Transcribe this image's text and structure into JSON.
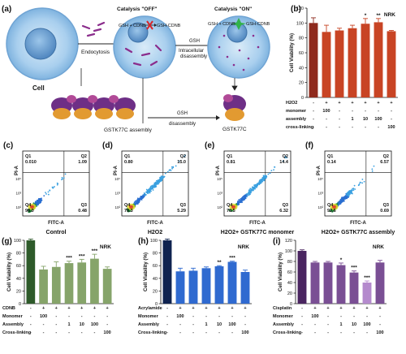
{
  "panel_labels": {
    "a": "(a)",
    "b": "(b)",
    "c": "(c)",
    "d": "(d)",
    "e": "(e)",
    "f": "(f)",
    "g": "(g)",
    "h": "(h)",
    "i": "(i)"
  },
  "schematic": {
    "catalysis_off": "Catalysis \"OFF\"",
    "catalysis_on": "Catalysis \"ON\"",
    "gsh_cdnb_1": "GSH + CDNB",
    "gsh_cdnb_product_1": "GSH-CDNB",
    "gsh_cdnb_2": "GSH + CDNB",
    "gsh_cdnb_product_2": "GSH-CDNB",
    "endocytosis": "Endocytosis",
    "gsh_top": "GSH",
    "intracellular": "Intracellular",
    "disassembly_top": "disassembly",
    "gsh_bottom": "GSH",
    "disassembly_bottom": "disassembly",
    "cell": "Cell",
    "assembly_label": "GSTK77C assembly",
    "monomer_label": "GSTK77C"
  },
  "flow": {
    "ylabel": "PI-A",
    "xlabel": "FITC-A",
    "panels": [
      {
        "q1": "0.010",
        "q2": "1.09",
        "q3": "0.48",
        "q4": "98.0",
        "caption": "Control"
      },
      {
        "q1": "0.80",
        "q2": "15.0",
        "q3": "5.29",
        "q4": "78.3",
        "caption": "H2O2"
      },
      {
        "q1": "0.81",
        "q2": "14.4",
        "q3": "6.32",
        "q4": "78.5",
        "caption": "H2O2+ GSTK77C monomer"
      },
      {
        "q1": "0.14",
        "q2": "6.57",
        "q3": "0.69",
        "q4": "92.6",
        "caption": "H2O2+ GSTK77C assembly"
      }
    ],
    "quadrants": {
      "q1": "Q1",
      "q2": "Q2",
      "q3": "Q3",
      "q4": "Q4"
    }
  },
  "chart_data": [
    {
      "panel": "b",
      "type": "bar",
      "title": "NRK",
      "ylabel": "Cell Viability (%)",
      "ylim": [
        0,
        120
      ],
      "yticks": [
        0,
        20,
        40,
        60,
        80,
        100,
        120
      ],
      "values": [
        100,
        88,
        90,
        93,
        99,
        101,
        89
      ],
      "errors": [
        7,
        9,
        3,
        4,
        7,
        5,
        1
      ],
      "colors": [
        "#8e2a1d",
        "#c84424",
        "#c84424",
        "#c84424",
        "#c84424",
        "#c84424",
        "#c84424"
      ],
      "stars": [
        "",
        "",
        "",
        "",
        "*",
        "**",
        ""
      ],
      "rows": [
        {
          "name": "H2O2",
          "cells": [
            "-",
            "+",
            "+",
            "+",
            "+",
            "+",
            "+"
          ]
        },
        {
          "name": "monomer",
          "cells": [
            "-",
            "100",
            "-",
            "-",
            "-",
            "-",
            "-"
          ]
        },
        {
          "name": "assembly",
          "cells": [
            "-",
            "-",
            "-",
            "1",
            "10",
            "100",
            "-"
          ]
        },
        {
          "name": "cross-linking",
          "cells": [
            "-",
            "-",
            "-",
            "-",
            "-",
            "-",
            "100"
          ]
        }
      ]
    },
    {
      "panel": "g",
      "type": "bar",
      "title": "NRK",
      "ylabel": "Cell Viability (%)",
      "ylim": [
        0,
        100
      ],
      "yticks": [
        0,
        20,
        40,
        60,
        80,
        100
      ],
      "values": [
        100,
        54,
        58,
        64,
        65,
        71,
        55
      ],
      "errors": [
        2,
        5,
        8,
        3,
        5,
        7,
        3
      ],
      "colors": [
        "#2e5a2a",
        "#86a46a",
        "#86a46a",
        "#86a46a",
        "#86a46a",
        "#86a46a",
        "#86a46a"
      ],
      "stars": [
        "",
        "",
        "",
        "***",
        "***",
        "***",
        ""
      ],
      "rows": [
        {
          "name": "CDNB",
          "cells": [
            "-",
            "+",
            "+",
            "+",
            "+",
            "+",
            "+"
          ]
        },
        {
          "name": "Monomer",
          "cells": [
            "-",
            "100",
            "-",
            "-",
            "-",
            "-",
            "-"
          ]
        },
        {
          "name": "Assembly",
          "cells": [
            "-",
            "-",
            "-",
            "1",
            "10",
            "100",
            "-"
          ]
        },
        {
          "name": "Cross-linking",
          "cells": [
            "-",
            "-",
            "-",
            "-",
            "-",
            "-",
            "100"
          ]
        }
      ]
    },
    {
      "panel": "h",
      "type": "bar",
      "title": "NRK",
      "ylabel": "Cell Viability (%)",
      "ylim": [
        0,
        100
      ],
      "yticks": [
        0,
        20,
        40,
        60,
        80,
        100
      ],
      "values": [
        100,
        51,
        52,
        56,
        59,
        66,
        50
      ],
      "errors": [
        2,
        5,
        4,
        2,
        1,
        1,
        3
      ],
      "colors": [
        "#0f2350",
        "#2f6ad0",
        "#2f6ad0",
        "#2f6ad0",
        "#2f6ad0",
        "#2f6ad0",
        "#2f6ad0"
      ],
      "stars": [
        "",
        "",
        "",
        "",
        "**",
        "***",
        ""
      ],
      "rows": [
        {
          "name": "Acrylamide",
          "cells": [
            "-",
            "+",
            "+",
            "+",
            "+",
            "+",
            "+"
          ]
        },
        {
          "name": "Monomer",
          "cells": [
            "-",
            "100",
            "-",
            "-",
            "-",
            "-",
            "-"
          ]
        },
        {
          "name": "Assembly",
          "cells": [
            "-",
            "-",
            "-",
            "1",
            "10",
            "100",
            "-"
          ]
        },
        {
          "name": "Cross-linking",
          "cells": [
            "-",
            "-",
            "-",
            "-",
            "-",
            "-",
            "100"
          ]
        }
      ]
    },
    {
      "panel": "i",
      "type": "bar",
      "title": "NRK",
      "ylabel": "Cell Viability (%)",
      "ylim": [
        0,
        120
      ],
      "yticks": [
        0,
        20,
        40,
        60,
        80,
        100,
        120
      ],
      "values": [
        100,
        78,
        78,
        73,
        59,
        40,
        78
      ],
      "errors": [
        2,
        2,
        2,
        4,
        3,
        3,
        4
      ],
      "colors": [
        "#4a2560",
        "#7a4f94",
        "#7a4f94",
        "#7a4f94",
        "#7a4f94",
        "#b48acd",
        "#7a4f94"
      ],
      "stars": [
        "",
        "",
        "",
        "*",
        "***",
        "***",
        ""
      ],
      "rows": [
        {
          "name": "Cisplatin",
          "cells": [
            "-",
            "+",
            "+",
            "+",
            "+",
            "+",
            "+"
          ]
        },
        {
          "name": "Monomer",
          "cells": [
            "-",
            "100",
            "-",
            "-",
            "-",
            "-",
            "-"
          ]
        },
        {
          "name": "Assembly",
          "cells": [
            "-",
            "-",
            "-",
            "1",
            "10",
            "100",
            "-"
          ]
        },
        {
          "name": "Cross-linking",
          "cells": [
            "-",
            "-",
            "-",
            "-",
            "-",
            "-",
            "100"
          ]
        }
      ]
    }
  ]
}
